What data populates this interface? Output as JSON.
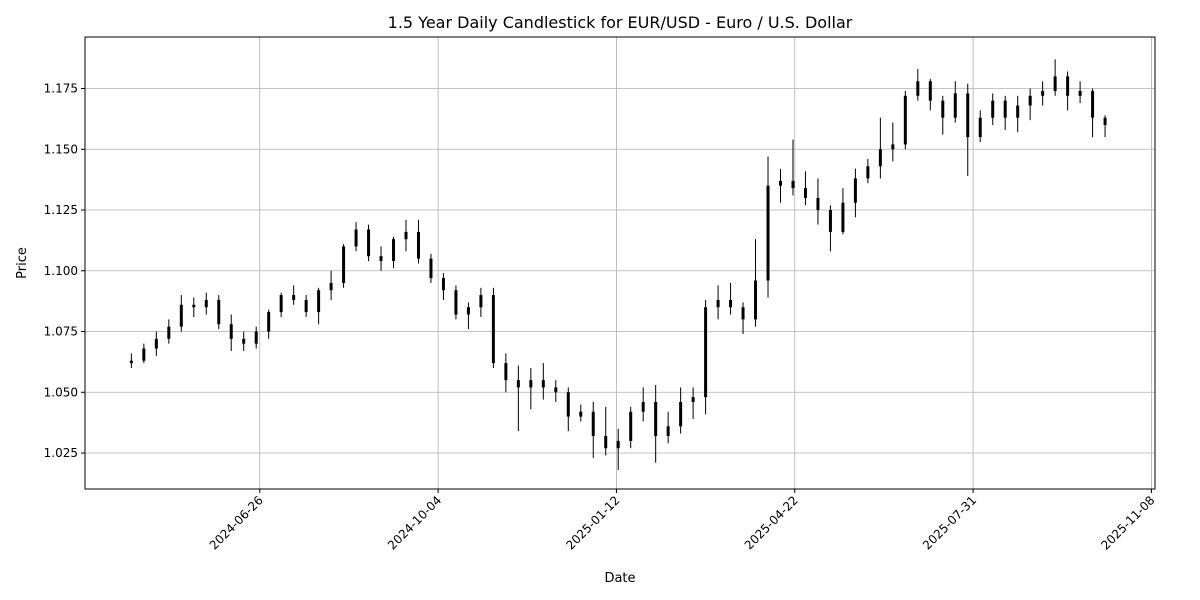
{
  "chart_data": {
    "type": "candlestick",
    "title": "1.5 Year Daily Candlestick for EUR/USD - Euro / U.S. Dollar",
    "x_label": "Date",
    "y_label": "Price",
    "color": "#000000",
    "grid": true,
    "xlim": [
      "2024-03-20",
      "2025-11-10"
    ],
    "xticks": [
      "2024-06-26",
      "2024-10-04",
      "2025-01-12",
      "2025-04-22",
      "2025-07-31",
      "2025-11-08"
    ],
    "ylim": [
      1.0102,
      1.1962
    ],
    "yticks": [
      1.025,
      {
        "value": 1.05,
        "label": "1.050"
      },
      1.075,
      {
        "value": 1.1,
        "label": "1.100"
      },
      1.125,
      {
        "value": 1.15,
        "label": "1.150"
      },
      1.175
    ],
    "x": [
      "2024-04-15",
      "2024-04-22",
      "2024-04-29",
      "2024-05-06",
      "2024-05-13",
      "2024-05-20",
      "2024-05-27",
      "2024-06-03",
      "2024-06-10",
      "2024-06-17",
      "2024-06-24",
      "2024-07-01",
      "2024-07-08",
      "2024-07-15",
      "2024-07-22",
      "2024-07-29",
      "2024-08-05",
      "2024-08-12",
      "2024-08-19",
      "2024-08-26",
      "2024-09-02",
      "2024-09-09",
      "2024-09-16",
      "2024-09-23",
      "2024-09-30",
      "2024-10-07",
      "2024-10-14",
      "2024-10-21",
      "2024-10-28",
      "2024-11-04",
      "2024-11-11",
      "2024-11-18",
      "2024-11-25",
      "2024-12-02",
      "2024-12-09",
      "2024-12-16",
      "2024-12-23",
      "2024-12-30",
      "2025-01-06",
      "2025-01-13",
      "2025-01-20",
      "2025-01-27",
      "2025-02-03",
      "2025-02-10",
      "2025-02-17",
      "2025-02-24",
      "2025-03-03",
      "2025-03-10",
      "2025-03-17",
      "2025-03-24",
      "2025-03-31",
      "2025-04-07",
      "2025-04-14",
      "2025-04-21",
      "2025-04-28",
      "2025-05-05",
      "2025-05-12",
      "2025-05-19",
      "2025-05-26",
      "2025-06-02",
      "2025-06-09",
      "2025-06-16",
      "2025-06-23",
      "2025-06-30",
      "2025-07-07",
      "2025-07-14",
      "2025-07-21",
      "2025-07-28",
      "2025-08-04",
      "2025-08-11",
      "2025-08-18",
      "2025-08-25",
      "2025-09-01",
      "2025-09-08",
      "2025-09-15",
      "2025-09-22",
      "2025-09-29",
      "2025-10-06",
      "2025-10-13"
    ],
    "open": [
      1.062,
      1.063,
      1.068,
      1.072,
      1.077,
      1.086,
      1.085,
      1.088,
      1.078,
      1.072,
      1.07,
      1.075,
      1.083,
      1.09,
      1.088,
      1.083,
      1.092,
      1.095,
      1.11,
      1.117,
      1.106,
      1.104,
      1.113,
      1.116,
      1.105,
      1.097,
      1.092,
      1.082,
      1.085,
      1.09,
      1.062,
      1.055,
      1.052,
      1.055,
      1.052,
      1.05,
      1.04,
      1.042,
      1.032,
      1.027,
      1.03,
      1.042,
      1.046,
      1.032,
      1.036,
      1.046,
      1.048,
      1.085,
      1.088,
      1.085,
      1.08,
      1.096,
      1.135,
      1.137,
      1.134,
      1.13,
      1.125,
      1.116,
      1.128,
      1.138,
      1.143,
      1.15,
      1.152,
      1.172,
      1.178,
      1.17,
      1.163,
      1.173,
      1.155,
      1.163,
      1.17,
      1.163,
      1.168,
      1.172,
      1.174,
      1.18,
      1.172,
      1.174,
      1.163
    ],
    "high": [
      1.066,
      1.07,
      1.075,
      1.08,
      1.09,
      1.089,
      1.091,
      1.09,
      1.082,
      1.075,
      1.077,
      1.084,
      1.091,
      1.094,
      1.09,
      1.093,
      1.1,
      1.111,
      1.12,
      1.119,
      1.11,
      1.114,
      1.121,
      1.121,
      1.107,
      1.099,
      1.094,
      1.087,
      1.093,
      1.093,
      1.066,
      1.061,
      1.06,
      1.062,
      1.055,
      1.052,
      1.045,
      1.046,
      1.044,
      1.035,
      1.044,
      1.052,
      1.053,
      1.042,
      1.052,
      1.052,
      1.088,
      1.094,
      1.095,
      1.087,
      1.113,
      1.147,
      1.142,
      1.154,
      1.141,
      1.138,
      1.127,
      1.134,
      1.142,
      1.146,
      1.163,
      1.161,
      1.174,
      1.183,
      1.179,
      1.172,
      1.178,
      1.177,
      1.166,
      1.173,
      1.172,
      1.172,
      1.175,
      1.178,
      1.187,
      1.182,
      1.178,
      1.175,
      1.164
    ],
    "low": [
      1.06,
      1.062,
      1.065,
      1.07,
      1.075,
      1.081,
      1.082,
      1.076,
      1.067,
      1.067,
      1.068,
      1.072,
      1.081,
      1.086,
      1.081,
      1.078,
      1.088,
      1.093,
      1.108,
      1.104,
      1.1,
      1.101,
      1.108,
      1.103,
      1.095,
      1.088,
      1.08,
      1.076,
      1.081,
      1.06,
      1.05,
      1.034,
      1.043,
      1.047,
      1.046,
      1.034,
      1.038,
      1.023,
      1.024,
      1.018,
      1.027,
      1.038,
      1.021,
      1.029,
      1.033,
      1.039,
      1.041,
      1.08,
      1.082,
      1.074,
      1.077,
      1.089,
      1.128,
      1.131,
      1.127,
      1.119,
      1.108,
      1.115,
      1.122,
      1.136,
      1.138,
      1.145,
      1.15,
      1.17,
      1.166,
      1.156,
      1.161,
      1.139,
      1.153,
      1.16,
      1.158,
      1.157,
      1.162,
      1.168,
      1.172,
      1.166,
      1.169,
      1.155,
      1.155
    ],
    "close": [
      1.063,
      1.068,
      1.072,
      1.077,
      1.086,
      1.085,
      1.088,
      1.078,
      1.072,
      1.07,
      1.075,
      1.083,
      1.09,
      1.088,
      1.083,
      1.092,
      1.095,
      1.11,
      1.117,
      1.106,
      1.104,
      1.113,
      1.116,
      1.105,
      1.097,
      1.092,
      1.082,
      1.085,
      1.09,
      1.062,
      1.055,
      1.052,
      1.055,
      1.052,
      1.05,
      1.04,
      1.042,
      1.032,
      1.027,
      1.03,
      1.042,
      1.046,
      1.032,
      1.036,
      1.046,
      1.048,
      1.085,
      1.088,
      1.085,
      1.08,
      1.096,
      1.135,
      1.137,
      1.134,
      1.13,
      1.125,
      1.116,
      1.128,
      1.138,
      1.143,
      1.15,
      1.152,
      1.172,
      1.178,
      1.17,
      1.163,
      1.173,
      1.155,
      1.163,
      1.17,
      1.163,
      1.168,
      1.172,
      1.174,
      1.18,
      1.172,
      1.174,
      1.163,
      1.16
    ]
  }
}
